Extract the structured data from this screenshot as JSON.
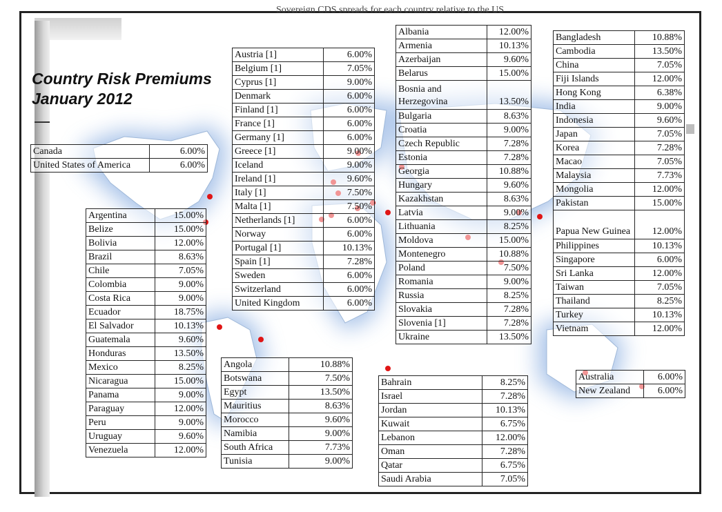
{
  "title": {
    "line1": "Country Risk Premiums",
    "line2": "January 2012"
  },
  "top_cut_text": "Sovereign CDS spreads for each country relative to the US",
  "colors": {
    "frame": "#222222",
    "map_land": "#ffffff",
    "map_halo": "#5e90d6",
    "marker": "#e01515"
  },
  "tables": {
    "north_america": [
      {
        "country": "Canada",
        "premium": "6.00%"
      },
      {
        "country": "United States of America",
        "premium": "6.00%"
      }
    ],
    "latin_america": [
      {
        "country": "Argentina",
        "premium": "15.00%"
      },
      {
        "country": "Belize",
        "premium": "15.00%"
      },
      {
        "country": "Bolivia",
        "premium": "12.00%"
      },
      {
        "country": "Brazil",
        "premium": "8.63%"
      },
      {
        "country": "Chile",
        "premium": "7.05%"
      },
      {
        "country": "Colombia",
        "premium": "9.00%"
      },
      {
        "country": "Costa Rica",
        "premium": "9.00%"
      },
      {
        "country": "Ecuador",
        "premium": "18.75%"
      },
      {
        "country": "El Salvador",
        "premium": "10.13%"
      },
      {
        "country": "Guatemala",
        "premium": "9.60%"
      },
      {
        "country": "Honduras",
        "premium": "13.50%"
      },
      {
        "country": "Mexico",
        "premium": "8.25%"
      },
      {
        "country": "Nicaragua",
        "premium": "15.00%"
      },
      {
        "country": "Panama",
        "premium": "9.00%"
      },
      {
        "country": "Paraguay",
        "premium": "12.00%"
      },
      {
        "country": "Peru",
        "premium": "9.00%"
      },
      {
        "country": "Uruguay",
        "premium": "9.60%"
      },
      {
        "country": "Venezuela",
        "premium": "12.00%"
      }
    ],
    "western_europe": [
      {
        "country": "Austria [1]",
        "premium": "6.00%"
      },
      {
        "country": "Belgium [1]",
        "premium": "7.05%"
      },
      {
        "country": "Cyprus [1]",
        "premium": "9.00%"
      },
      {
        "country": "Denmark",
        "premium": "6.00%"
      },
      {
        "country": "Finland [1]",
        "premium": "6.00%"
      },
      {
        "country": "France [1]",
        "premium": "6.00%"
      },
      {
        "country": "Germany [1]",
        "premium": "6.00%"
      },
      {
        "country": "Greece [1]",
        "premium": "9.00%"
      },
      {
        "country": "Iceland",
        "premium": "9.00%"
      },
      {
        "country": "Ireland [1]",
        "premium": "9.60%"
      },
      {
        "country": "Italy [1]",
        "premium": "7.50%"
      },
      {
        "country": "Malta [1]",
        "premium": "7.50%"
      },
      {
        "country": "Netherlands [1]",
        "premium": "6.00%"
      },
      {
        "country": "Norway",
        "premium": "6.00%"
      },
      {
        "country": "Portugal [1]",
        "premium": "10.13%"
      },
      {
        "country": "Spain [1]",
        "premium": "7.28%"
      },
      {
        "country": "Sweden",
        "premium": "6.00%"
      },
      {
        "country": "Switzerland",
        "premium": "6.00%"
      },
      {
        "country": "United Kingdom",
        "premium": "6.00%"
      }
    ],
    "africa": [
      {
        "country": "Angola",
        "premium": "10.88%"
      },
      {
        "country": "Botswana",
        "premium": "7.50%"
      },
      {
        "country": "Egypt",
        "premium": "13.50%"
      },
      {
        "country": "Mauritius",
        "premium": "8.63%"
      },
      {
        "country": "Morocco",
        "premium": "9.60%"
      },
      {
        "country": "Namibia",
        "premium": "9.00%"
      },
      {
        "country": "South Africa",
        "premium": "7.73%"
      },
      {
        "country": "Tunisia",
        "premium": "9.00%"
      }
    ],
    "eastern_europe": [
      {
        "country": "Albania",
        "premium": "12.00%"
      },
      {
        "country": "Armenia",
        "premium": "10.13%"
      },
      {
        "country": "Azerbaijan",
        "premium": "9.60%"
      },
      {
        "country": "Belarus",
        "premium": "15.00%"
      },
      {
        "country": "Bosnia and Herzegovina",
        "premium": "13.50%"
      },
      {
        "country": "Bulgaria",
        "premium": "8.63%"
      },
      {
        "country": "Croatia",
        "premium": "9.00%"
      },
      {
        "country": "Czech Republic",
        "premium": "7.28%"
      },
      {
        "country": "Estonia",
        "premium": "7.28%"
      },
      {
        "country": "Georgia",
        "premium": "10.88%"
      },
      {
        "country": "Hungary",
        "premium": "9.60%"
      },
      {
        "country": "Kazakhstan",
        "premium": "8.63%"
      },
      {
        "country": "Latvia",
        "premium": "9.00%"
      },
      {
        "country": "Lithuania",
        "premium": "8.25%"
      },
      {
        "country": "Moldova",
        "premium": "15.00%"
      },
      {
        "country": "Montenegro",
        "premium": "10.88%"
      },
      {
        "country": "Poland",
        "premium": "7.50%"
      },
      {
        "country": "Romania",
        "premium": "9.00%"
      },
      {
        "country": "Russia",
        "premium": "8.25%"
      },
      {
        "country": "Slovakia",
        "premium": "7.28%"
      },
      {
        "country": "Slovenia [1]",
        "premium": "7.28%"
      },
      {
        "country": "Ukraine",
        "premium": "13.50%"
      }
    ],
    "middle_east": [
      {
        "country": "Bahrain",
        "premium": "8.25%"
      },
      {
        "country": "Israel",
        "premium": "7.28%"
      },
      {
        "country": "Jordan",
        "premium": "10.13%"
      },
      {
        "country": "Kuwait",
        "premium": "6.75%"
      },
      {
        "country": "Lebanon",
        "premium": "12.00%"
      },
      {
        "country": "Oman",
        "premium": "7.28%"
      },
      {
        "country": "Qatar",
        "premium": "6.75%"
      },
      {
        "country": "Saudi Arabia",
        "premium": "7.05%"
      }
    ],
    "asia": [
      {
        "country": "Bangladesh",
        "premium": "10.88%"
      },
      {
        "country": "Cambodia",
        "premium": "13.50%"
      },
      {
        "country": "China",
        "premium": "7.05%"
      },
      {
        "country": "Fiji Islands",
        "premium": "12.00%"
      },
      {
        "country": "Hong Kong",
        "premium": "6.38%"
      },
      {
        "country": "India",
        "premium": "9.00%"
      },
      {
        "country": "Indonesia",
        "premium": "9.60%"
      },
      {
        "country": "Japan",
        "premium": "7.05%"
      },
      {
        "country": "Korea",
        "premium": "7.28%"
      },
      {
        "country": "Macao",
        "premium": "7.05%"
      },
      {
        "country": "Malaysia",
        "premium": "7.73%"
      },
      {
        "country": "Mongolia",
        "premium": "12.00%"
      },
      {
        "country": "Pakistan",
        "premium": "15.00%"
      },
      {
        "country": "Papua New Guinea",
        "premium": "12.00%"
      },
      {
        "country": "Philippines",
        "premium": "10.13%"
      },
      {
        "country": "Singapore",
        "premium": "6.00%"
      },
      {
        "country": "Sri Lanka",
        "premium": "12.00%"
      },
      {
        "country": "Taiwan",
        "premium": "7.05%"
      },
      {
        "country": "Thailand",
        "premium": "8.25%"
      },
      {
        "country": "Turkey",
        "premium": "10.13%"
      },
      {
        "country": "Vietnam",
        "premium": "12.00%"
      }
    ],
    "australasia": [
      {
        "country": "Australia",
        "premium": "6.00%"
      },
      {
        "country": "New Zealand",
        "premium": "6.00%"
      }
    ]
  }
}
